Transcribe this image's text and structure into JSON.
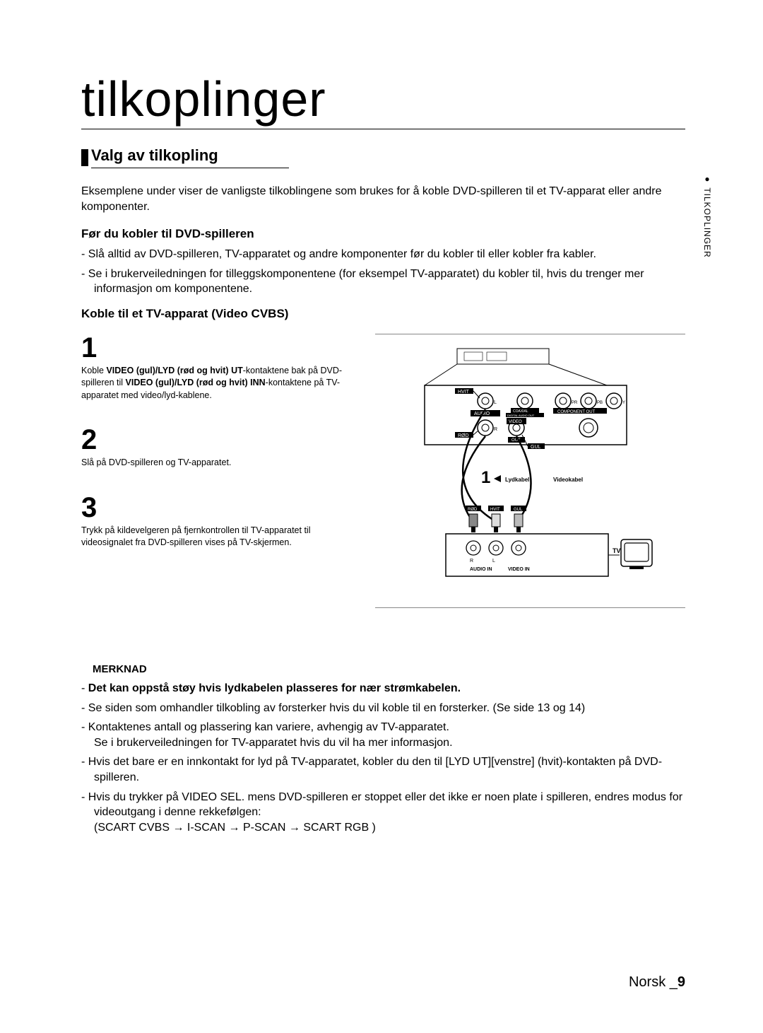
{
  "title": "tilkoplinger",
  "section_title": "Valg av tilkopling",
  "intro": "Eksemplene under viser de vanligste tilkoblingene som brukes for å koble DVD-spilleren til et TV-apparat eller andre komponenter.",
  "sub1_title": "Før du kobler til DVD-spilleren",
  "sub1_items": [
    "Slå alltid av DVD-spilleren, TV-apparatet og andre komponenter før du kobler til eller kobler fra kabler.",
    "Se i brukerveiledningen for tilleggskomponentene (for eksempel TV-apparatet) du kobler til, hvis du trenger mer informasjon om komponentene."
  ],
  "sub2_title": "Koble til et TV-apparat (Video CVBS)",
  "steps": [
    {
      "num": "1",
      "html": "Koble <b>VIDEO (gul)/LYD (rød og hvit) UT</b>-kontaktene bak på DVD-spilleren til <b>VIDEO (gul)/LYD (rød og hvit) INN</b>-kontaktene på TV-apparatet med video/lyd-kablene."
    },
    {
      "num": "2",
      "html": "Slå på DVD-spilleren og TV-apparatet."
    },
    {
      "num": "3",
      "html": "Trykk på kildevelgeren på fjernkontrollen til TV-apparatet til videosignalet fra DVD-spilleren vises på TV-skjermen."
    }
  ],
  "merknad_label": "MERKNAD",
  "merknad_items": [
    "<b>Det kan oppstå støy hvis lydkabelen plasseres for nær strømkabelen.</b>",
    "Se siden som omhandler tilkobling av forsterker hvis du vil koble til en forsterker. (Se side 13 og 14)",
    "Kontaktenes antall og plassering kan variere, avhengig av TV-apparatet.<br>Se i brukerveiledningen for TV-apparatet hvis du vil ha mer informasjon.",
    "Hvis det bare er en innkontakt for lyd på TV-apparatet, kobler du den til [LYD UT][venstre] (hvit)-kontakten på DVD-spilleren.",
    "Hvis du trykker på VIDEO SEL. mens DVD-spilleren er stoppet eller det ikke er noen plate i spilleren, endres modus for videoutgang i denne rekkefølgen:<br>(SCART CVBS → I-SCAN → P-SCAN →  SCART RGB )"
  ],
  "side_tab": "TILKOPLINGER",
  "footer_lang": "Norsk _",
  "footer_page": "9",
  "diagram": {
    "labels": {
      "hvit": "HVIT",
      "rod": "RØD",
      "gul": "GUL",
      "audio": "AUDIO",
      "out": "OUT",
      "video": "VIDEO",
      "coaxial": "COAXIAL",
      "digital": "DIGITAL AUDIO OUT",
      "component": "COMPONENT OUT",
      "lydkabel": "Lydkabel",
      "videokabel": "Videokabel",
      "audio_in": "AUDIO IN",
      "video_in": "VIDEO IN",
      "tv": "TV",
      "step_indicator": "1",
      "l": "L",
      "r": "R",
      "pr": "PR",
      "pb": "PB",
      "y": "Y"
    },
    "colors": {
      "black": "#000000",
      "gray": "#888888",
      "white": "#ffffff",
      "lightgray": "#cccccc"
    }
  }
}
